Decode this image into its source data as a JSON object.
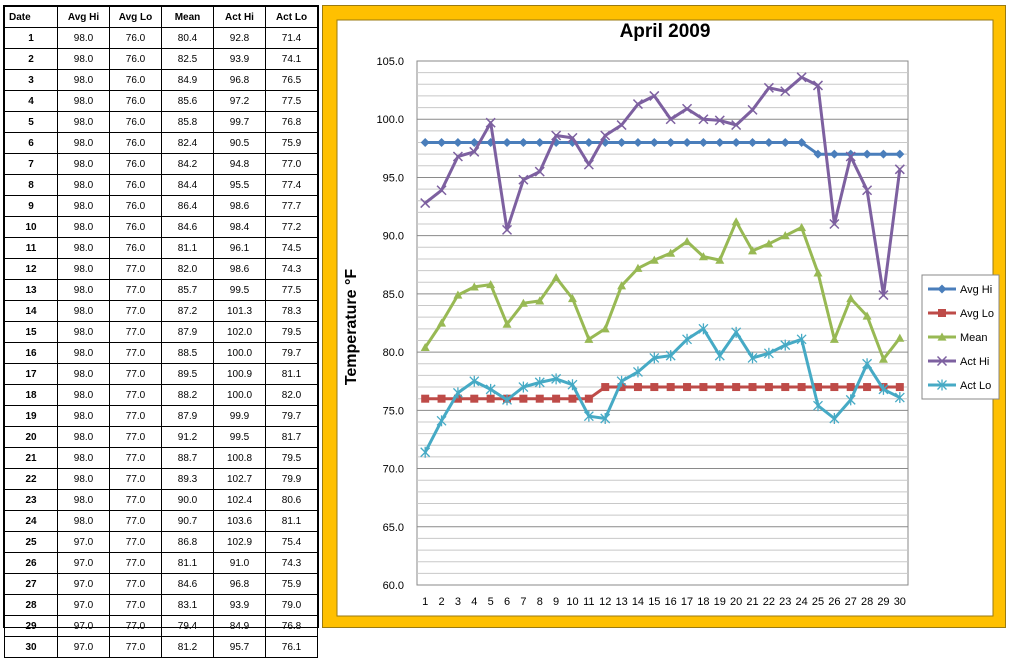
{
  "table": {
    "headers": [
      "Date",
      "Avg Hi",
      "Avg Lo",
      "Mean",
      "Act Hi",
      "Act Lo"
    ],
    "rows": [
      [
        "1",
        "98.0",
        "76.0",
        "80.4",
        "92.8",
        "71.4"
      ],
      [
        "2",
        "98.0",
        "76.0",
        "82.5",
        "93.9",
        "74.1"
      ],
      [
        "3",
        "98.0",
        "76.0",
        "84.9",
        "96.8",
        "76.5"
      ],
      [
        "4",
        "98.0",
        "76.0",
        "85.6",
        "97.2",
        "77.5"
      ],
      [
        "5",
        "98.0",
        "76.0",
        "85.8",
        "99.7",
        "76.8"
      ],
      [
        "6",
        "98.0",
        "76.0",
        "82.4",
        "90.5",
        "75.9"
      ],
      [
        "7",
        "98.0",
        "76.0",
        "84.2",
        "94.8",
        "77.0"
      ],
      [
        "8",
        "98.0",
        "76.0",
        "84.4",
        "95.5",
        "77.4"
      ],
      [
        "9",
        "98.0",
        "76.0",
        "86.4",
        "98.6",
        "77.7"
      ],
      [
        "10",
        "98.0",
        "76.0",
        "84.6",
        "98.4",
        "77.2"
      ],
      [
        "11",
        "98.0",
        "76.0",
        "81.1",
        "96.1",
        "74.5"
      ],
      [
        "12",
        "98.0",
        "77.0",
        "82.0",
        "98.6",
        "74.3"
      ],
      [
        "13",
        "98.0",
        "77.0",
        "85.7",
        "99.5",
        "77.5"
      ],
      [
        "14",
        "98.0",
        "77.0",
        "87.2",
        "101.3",
        "78.3"
      ],
      [
        "15",
        "98.0",
        "77.0",
        "87.9",
        "102.0",
        "79.5"
      ],
      [
        "16",
        "98.0",
        "77.0",
        "88.5",
        "100.0",
        "79.7"
      ],
      [
        "17",
        "98.0",
        "77.0",
        "89.5",
        "100.9",
        "81.1"
      ],
      [
        "18",
        "98.0",
        "77.0",
        "88.2",
        "100.0",
        "82.0"
      ],
      [
        "19",
        "98.0",
        "77.0",
        "87.9",
        "99.9",
        "79.7"
      ],
      [
        "20",
        "98.0",
        "77.0",
        "91.2",
        "99.5",
        "81.7"
      ],
      [
        "21",
        "98.0",
        "77.0",
        "88.7",
        "100.8",
        "79.5"
      ],
      [
        "22",
        "98.0",
        "77.0",
        "89.3",
        "102.7",
        "79.9"
      ],
      [
        "23",
        "98.0",
        "77.0",
        "90.0",
        "102.4",
        "80.6"
      ],
      [
        "24",
        "98.0",
        "77.0",
        "90.7",
        "103.6",
        "81.1"
      ],
      [
        "25",
        "97.0",
        "77.0",
        "86.8",
        "102.9",
        "75.4"
      ],
      [
        "26",
        "97.0",
        "77.0",
        "81.1",
        "91.0",
        "74.3"
      ],
      [
        "27",
        "97.0",
        "77.0",
        "84.6",
        "96.8",
        "75.9"
      ],
      [
        "28",
        "97.0",
        "77.0",
        "83.1",
        "93.9",
        "79.0"
      ],
      [
        "29",
        "97.0",
        "77.0",
        "79.4",
        "84.9",
        "76.8"
      ],
      [
        "30",
        "97.0",
        "77.0",
        "81.2",
        "95.7",
        "76.1"
      ]
    ]
  },
  "chart_data": {
    "type": "line",
    "title": "April 2009",
    "xlabel": "",
    "ylabel": "Temperature °F",
    "ylim": [
      60.0,
      105.0
    ],
    "ytick_step": 5,
    "ytick_decimals": 1,
    "x": [
      1,
      2,
      3,
      4,
      5,
      6,
      7,
      8,
      9,
      10,
      11,
      12,
      13,
      14,
      15,
      16,
      17,
      18,
      19,
      20,
      21,
      22,
      23,
      24,
      25,
      26,
      27,
      28,
      29,
      30
    ],
    "grid": true,
    "legend_position": "right",
    "series": [
      {
        "name": "Avg Hi",
        "color": "#4A7EBB",
        "marker": "diamond",
        "values": [
          98.0,
          98.0,
          98.0,
          98.0,
          98.0,
          98.0,
          98.0,
          98.0,
          98.0,
          98.0,
          98.0,
          98.0,
          98.0,
          98.0,
          98.0,
          98.0,
          98.0,
          98.0,
          98.0,
          98.0,
          98.0,
          98.0,
          98.0,
          98.0,
          97.0,
          97.0,
          97.0,
          97.0,
          97.0,
          97.0
        ]
      },
      {
        "name": "Avg Lo",
        "color": "#BE4B48",
        "marker": "square",
        "values": [
          76.0,
          76.0,
          76.0,
          76.0,
          76.0,
          76.0,
          76.0,
          76.0,
          76.0,
          76.0,
          76.0,
          77.0,
          77.0,
          77.0,
          77.0,
          77.0,
          77.0,
          77.0,
          77.0,
          77.0,
          77.0,
          77.0,
          77.0,
          77.0,
          77.0,
          77.0,
          77.0,
          77.0,
          77.0,
          77.0
        ]
      },
      {
        "name": "Mean",
        "color": "#98B954",
        "marker": "triangle",
        "values": [
          80.4,
          82.5,
          84.9,
          85.6,
          85.8,
          82.4,
          84.2,
          84.4,
          86.4,
          84.6,
          81.1,
          82.0,
          85.7,
          87.2,
          87.9,
          88.5,
          89.5,
          88.2,
          87.9,
          91.2,
          88.7,
          89.3,
          90.0,
          90.7,
          86.8,
          81.1,
          84.6,
          83.1,
          79.4,
          81.2
        ]
      },
      {
        "name": "Act Hi",
        "color": "#7D60A0",
        "marker": "x",
        "values": [
          92.8,
          93.9,
          96.8,
          97.2,
          99.7,
          90.5,
          94.8,
          95.5,
          98.6,
          98.4,
          96.1,
          98.6,
          99.5,
          101.3,
          102.0,
          100.0,
          100.9,
          100.0,
          99.9,
          99.5,
          100.8,
          102.7,
          102.4,
          103.6,
          102.9,
          91.0,
          96.8,
          93.9,
          84.9,
          95.7
        ]
      },
      {
        "name": "Act Lo",
        "color": "#46AAC5",
        "marker": "star",
        "values": [
          71.4,
          74.1,
          76.5,
          77.5,
          76.8,
          75.9,
          77.0,
          77.4,
          77.7,
          77.2,
          74.5,
          74.3,
          77.5,
          78.3,
          79.5,
          79.7,
          81.1,
          82.0,
          79.7,
          81.7,
          79.5,
          79.9,
          80.6,
          81.1,
          75.4,
          74.3,
          75.9,
          79.0,
          76.8,
          76.1
        ]
      }
    ]
  }
}
